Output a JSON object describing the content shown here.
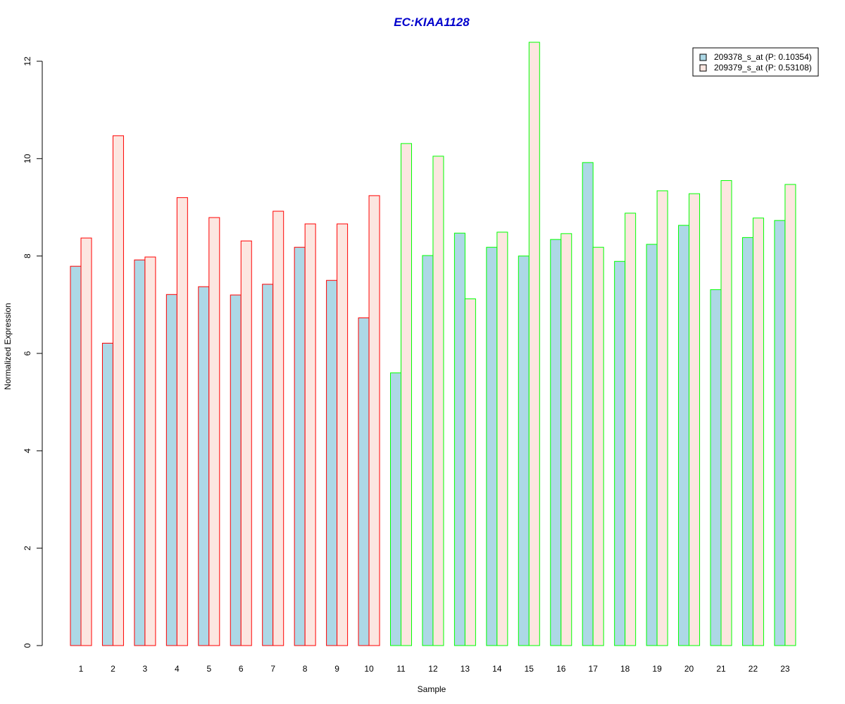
{
  "chart_data": {
    "type": "bar",
    "title": "EC:KIAA1128",
    "xlabel": "Sample",
    "ylabel": "Normalized Expression",
    "categories": [
      "1",
      "2",
      "3",
      "4",
      "5",
      "6",
      "7",
      "8",
      "9",
      "10",
      "11",
      "12",
      "13",
      "14",
      "15",
      "16",
      "17",
      "18",
      "19",
      "20",
      "21",
      "22",
      "23"
    ],
    "yticks": [
      "0",
      "2",
      "4",
      "6",
      "8",
      "10",
      "12"
    ],
    "ylim": [
      0,
      12.4
    ],
    "series": [
      {
        "name": "209378_s_at (P: 0.10354)",
        "fill": "#add8e6",
        "values": [
          7.79,
          6.21,
          7.92,
          7.21,
          7.37,
          7.2,
          7.42,
          8.18,
          7.5,
          6.73,
          5.6,
          8.01,
          8.47,
          8.18,
          8.0,
          8.34,
          9.92,
          7.89,
          8.24,
          8.63,
          7.31,
          8.38,
          8.73
        ]
      },
      {
        "name": "209379_s_at (P: 0.53108)",
        "fill": "#fce6e0",
        "values": [
          8.37,
          10.47,
          7.98,
          9.2,
          8.79,
          8.31,
          8.92,
          8.66,
          8.66,
          9.24,
          10.31,
          10.05,
          7.12,
          8.49,
          12.39,
          8.46,
          8.18,
          8.88,
          9.34,
          9.28,
          9.55,
          8.78,
          9.47
        ]
      }
    ],
    "group_border_colors": [
      "#ff0000",
      "#ff0000",
      "#ff0000",
      "#ff0000",
      "#ff0000",
      "#ff0000",
      "#ff0000",
      "#ff0000",
      "#ff0000",
      "#ff0000",
      "#00ff00",
      "#00ff00",
      "#00ff00",
      "#00ff00",
      "#00ff00",
      "#00ff00",
      "#00ff00",
      "#00ff00",
      "#00ff00",
      "#00ff00",
      "#00ff00",
      "#00ff00",
      "#00ff00"
    ],
    "title_color": "#0000cc",
    "legend_position": "top-right",
    "grid": false
  }
}
